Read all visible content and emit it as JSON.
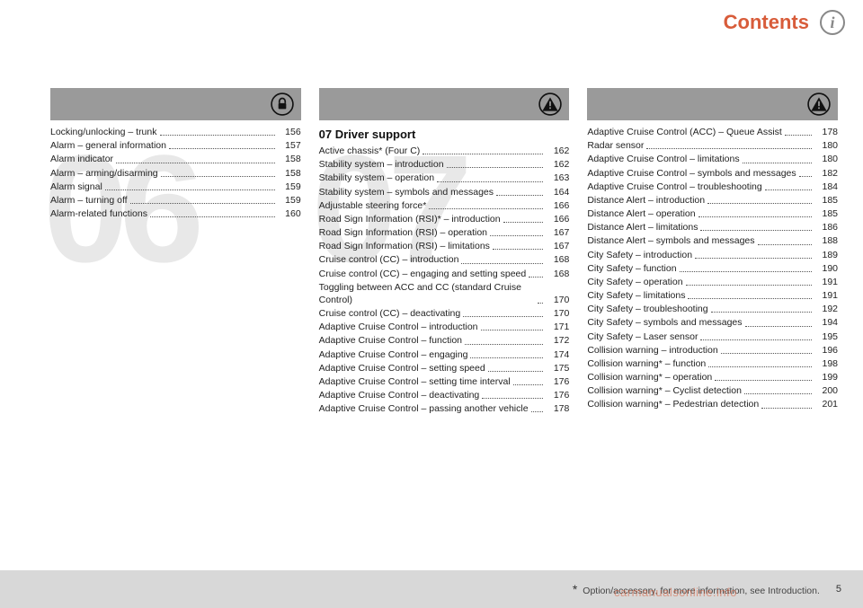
{
  "header": {
    "title": "Contents"
  },
  "footer": {
    "note": "* Option/accessory, for more information, see Introduction.",
    "page": "5",
    "watermark": "carmanualsonline.info"
  },
  "columns": [
    {
      "ghost": "06",
      "icon": "lock",
      "section_title": "",
      "items": [
        {
          "label": "Locking/unlocking – trunk",
          "page": "156"
        },
        {
          "label": "Alarm – general information",
          "page": "157"
        },
        {
          "label": "Alarm indicator",
          "page": "158"
        },
        {
          "label": "Alarm – arming/disarming",
          "page": "158"
        },
        {
          "label": "Alarm signal",
          "page": "159"
        },
        {
          "label": "Alarm – turning off",
          "page": "159"
        },
        {
          "label": "Alarm-related functions",
          "page": "160"
        }
      ]
    },
    {
      "ghost": "07",
      "icon": "warning",
      "section_title": "07 Driver support",
      "items": [
        {
          "label": "Active chassis* (Four C)",
          "page": "162"
        },
        {
          "label": "Stability system – introduction",
          "page": "162"
        },
        {
          "label": "Stability system – operation",
          "page": "163"
        },
        {
          "label": "Stability system – symbols and messages",
          "page": "164"
        },
        {
          "label": "Adjustable steering force*",
          "page": "166"
        },
        {
          "label": "Road Sign Information (RSI)* – introduction",
          "page": "166"
        },
        {
          "label": "Road Sign Information (RSI) – operation",
          "page": "167"
        },
        {
          "label": "Road Sign Information (RSI) – limitations",
          "page": "167"
        },
        {
          "label": "Cruise control (CC) – introduction",
          "page": "168"
        },
        {
          "label": "Cruise control (CC) – engaging and setting speed",
          "page": "168"
        },
        {
          "label": "Toggling between ACC and CC (standard Cruise Control)",
          "page": "170"
        },
        {
          "label": "Cruise control (CC) – deactivating",
          "page": "170"
        },
        {
          "label": "Adaptive Cruise Control – introduction",
          "page": "171"
        },
        {
          "label": "Adaptive Cruise Control – function",
          "page": "172"
        },
        {
          "label": "Adaptive Cruise Control – engaging",
          "page": "174"
        },
        {
          "label": "Adaptive Cruise Control – setting speed",
          "page": "175"
        },
        {
          "label": "Adaptive Cruise Control – setting time interval",
          "page": "176"
        },
        {
          "label": "Adaptive Cruise Control – deactivating",
          "page": "176"
        },
        {
          "label": "Adaptive Cruise Control – passing another vehicle",
          "page": "178"
        }
      ]
    },
    {
      "ghost": "",
      "icon": "warning",
      "section_title": "",
      "items": [
        {
          "label": "Adaptive Cruise Control (ACC) – Queue Assist",
          "page": "178"
        },
        {
          "label": "Radar sensor",
          "page": "180"
        },
        {
          "label": "Adaptive Cruise Control – limitations",
          "page": "180"
        },
        {
          "label": "Adaptive Cruise Control – symbols and messages",
          "page": "182"
        },
        {
          "label": "Adaptive Cruise Control – troubleshooting",
          "page": "184"
        },
        {
          "label": "Distance Alert – introduction",
          "page": "185"
        },
        {
          "label": "Distance Alert – operation",
          "page": "185"
        },
        {
          "label": "Distance Alert – limitations",
          "page": "186"
        },
        {
          "label": "Distance Alert – symbols and messages",
          "page": "188"
        },
        {
          "label": "City Safety – introduction",
          "page": "189"
        },
        {
          "label": "City Safety – function",
          "page": "190"
        },
        {
          "label": "City Safety – operation",
          "page": "191"
        },
        {
          "label": "City Safety – limitations",
          "page": "191"
        },
        {
          "label": "City Safety – troubleshooting",
          "page": "192"
        },
        {
          "label": "City Safety – symbols and messages",
          "page": "194"
        },
        {
          "label": "City Safety – Laser sensor",
          "page": "195"
        },
        {
          "label": "Collision warning – introduction",
          "page": "196"
        },
        {
          "label": "Collision warning* – function",
          "page": "198"
        },
        {
          "label": "Collision warning* – operation",
          "page": "199"
        },
        {
          "label": "Collision warning* – Cyclist detection",
          "page": "200"
        },
        {
          "label": "Collision warning* – Pedestrian detection",
          "page": "201"
        }
      ]
    }
  ]
}
